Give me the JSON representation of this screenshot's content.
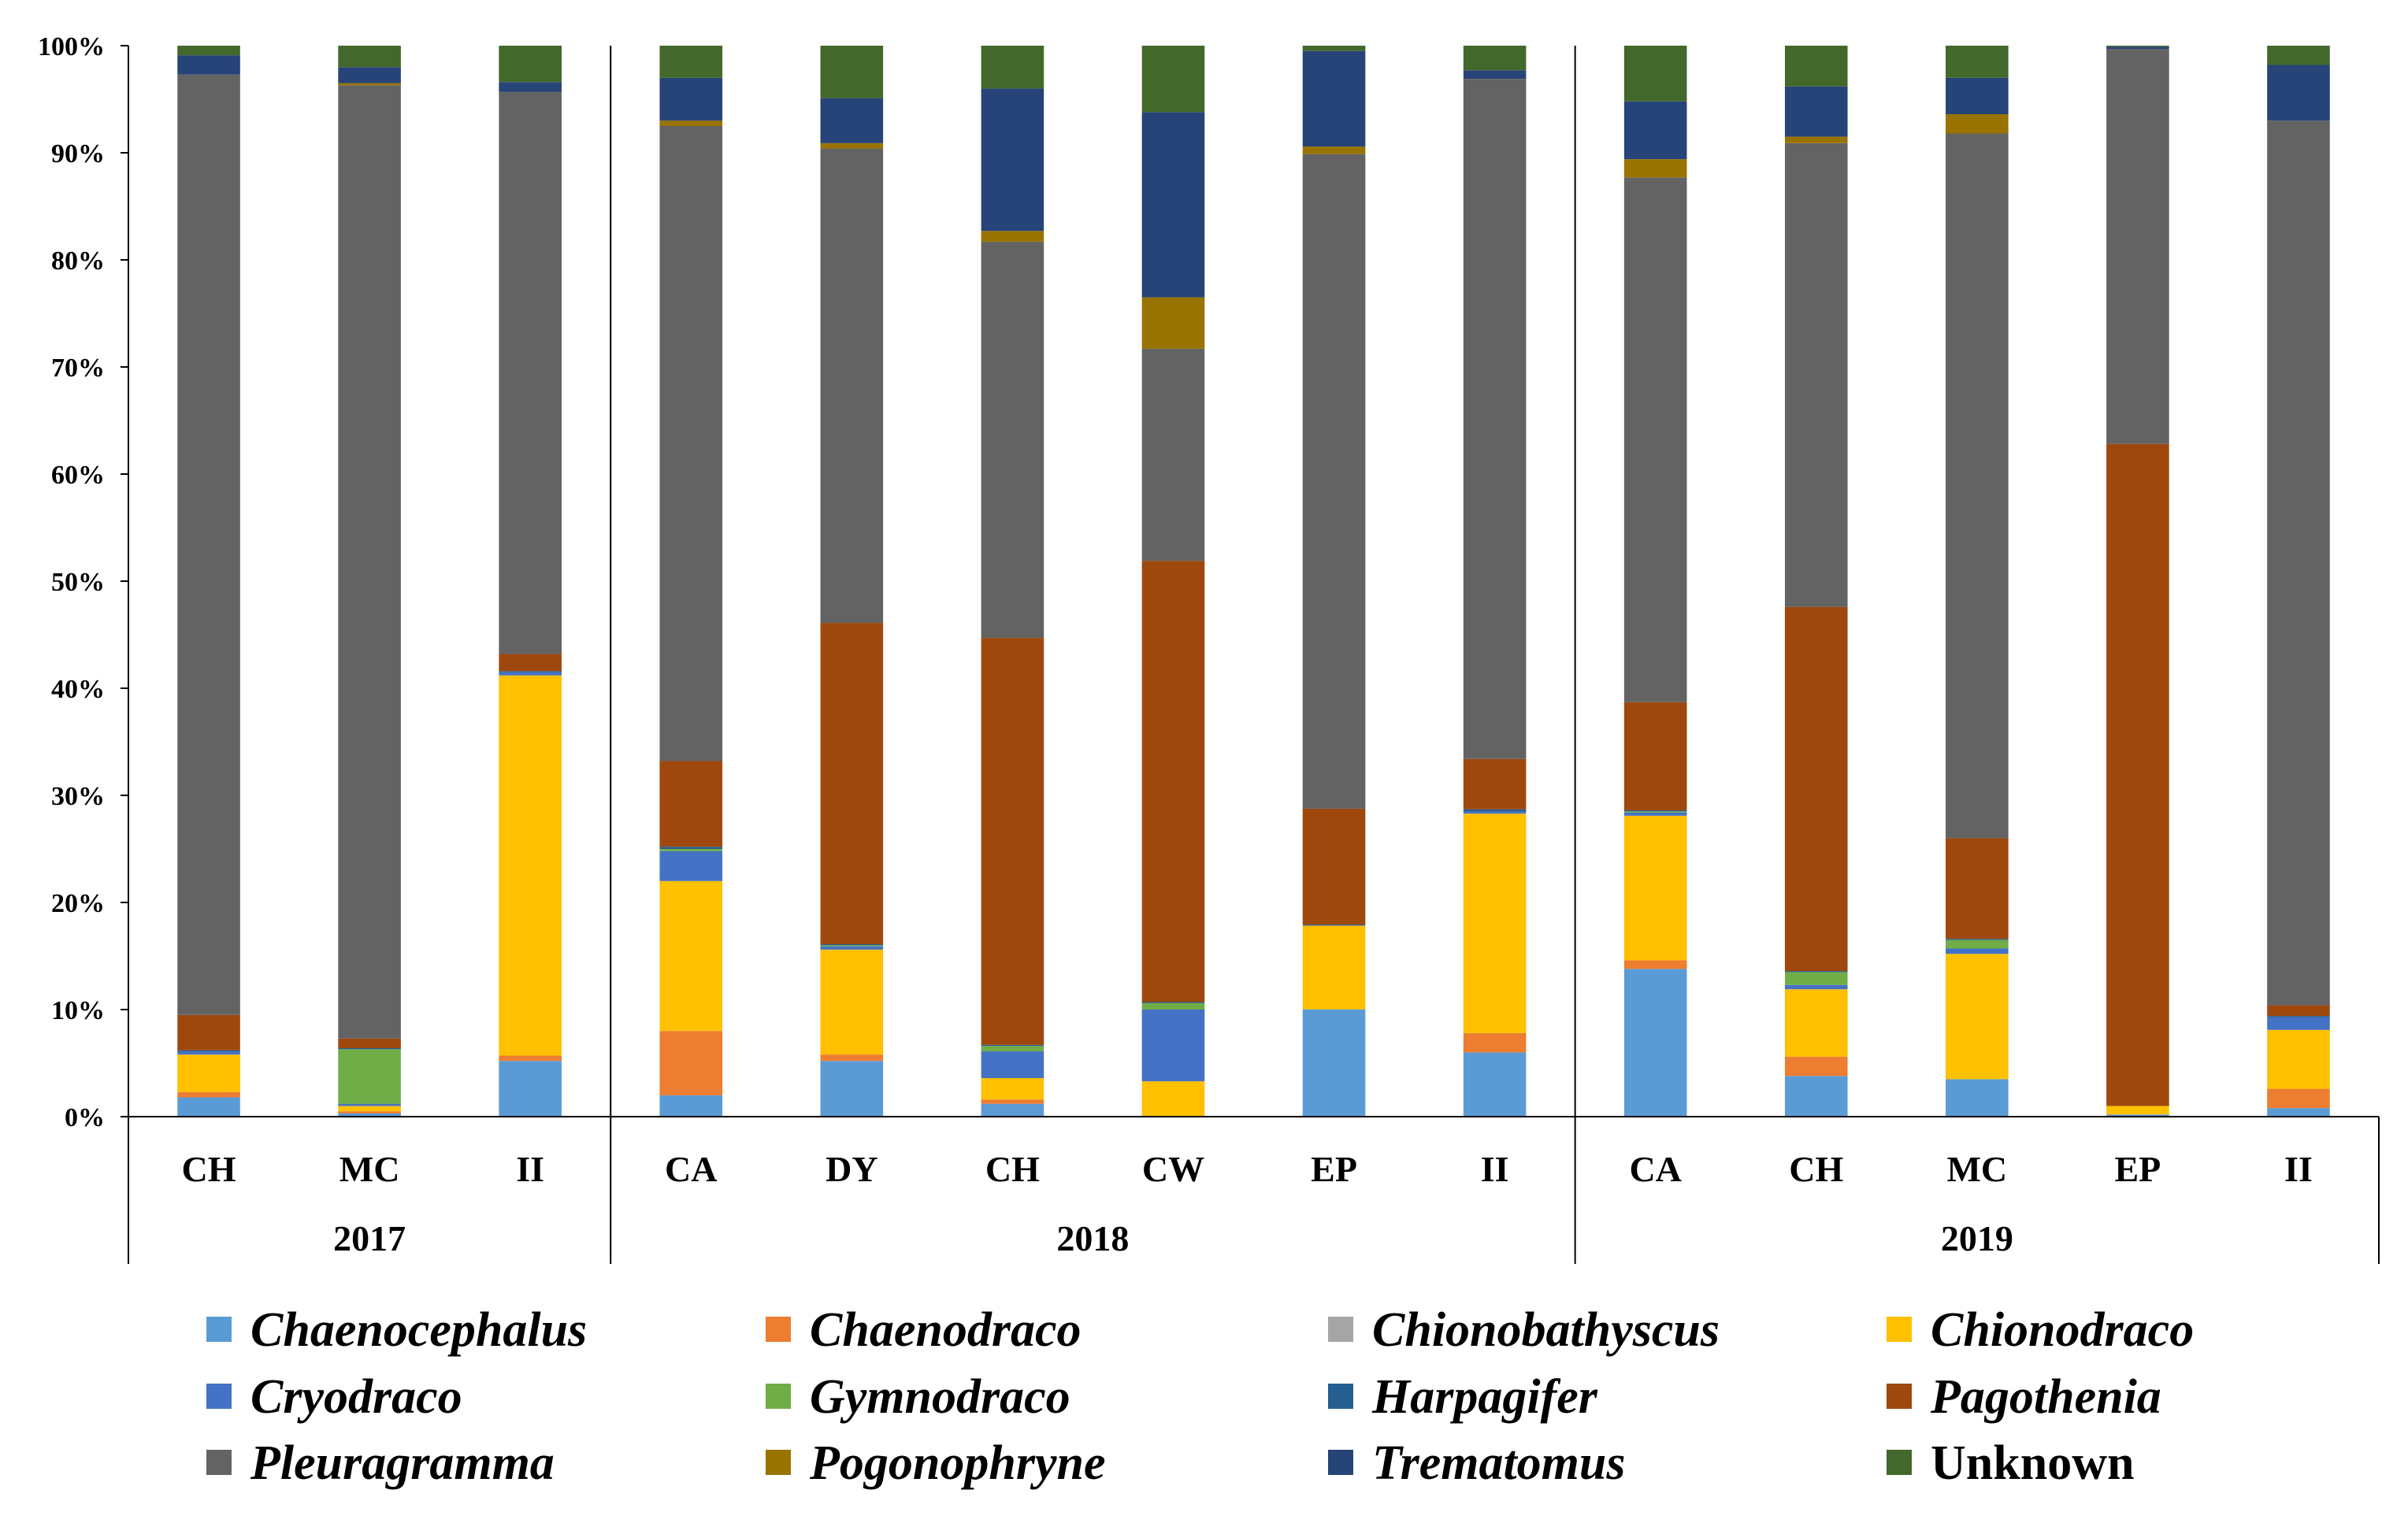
{
  "chart_data": {
    "type": "bar",
    "stacked": true,
    "percent": true,
    "title": "",
    "ylabel": "",
    "ylim": [
      0,
      100
    ],
    "yticks": [
      "0%",
      "10%",
      "20%",
      "30%",
      "40%",
      "50%",
      "60%",
      "70%",
      "80%",
      "90%",
      "100%"
    ],
    "groups": [
      {
        "label": "2017",
        "categories": [
          "CH",
          "MC",
          "II"
        ]
      },
      {
        "label": "2018",
        "categories": [
          "CA",
          "DY",
          "CH",
          "CW",
          "EP",
          "II"
        ]
      },
      {
        "label": "2019",
        "categories": [
          "CA",
          "CH",
          "MC",
          "EP",
          "II"
        ]
      }
    ],
    "categories": [
      "CH",
      "MC",
      "II",
      "CA",
      "DY",
      "CH",
      "CW",
      "EP",
      "II",
      "CA",
      "CH",
      "MC",
      "EP",
      "II"
    ],
    "series": [
      {
        "name": "Chaenocephalus",
        "italic": true,
        "color": "#5B9BD5",
        "values": [
          1.8,
          0.3,
          5.2,
          2.0,
          5.2,
          1.2,
          0.0,
          10.0,
          6.0,
          13.8,
          3.8,
          3.5,
          0.2,
          0.8
        ]
      },
      {
        "name": "Chaenodraco",
        "italic": true,
        "color": "#ED7D31",
        "values": [
          0.5,
          0.2,
          0.5,
          6.0,
          0.6,
          0.4,
          0.0,
          0.0,
          1.8,
          0.8,
          1.8,
          0.0,
          0.0,
          1.8
        ]
      },
      {
        "name": "Chionobathyscus",
        "italic": true,
        "color": "#A5A5A5",
        "values": [
          0.0,
          0.0,
          0.0,
          0.0,
          0.0,
          0.0,
          0.0,
          0.0,
          0.0,
          0.0,
          0.0,
          0.0,
          0.0,
          0.0
        ]
      },
      {
        "name": "Chionodraco",
        "italic": true,
        "color": "#FFC000",
        "values": [
          3.5,
          0.5,
          35.5,
          14.0,
          9.8,
          2.0,
          3.3,
          7.8,
          20.5,
          13.5,
          6.3,
          11.7,
          0.8,
          5.5
        ]
      },
      {
        "name": "Cryodraco",
        "italic": true,
        "color": "#4472C4",
        "values": [
          0.3,
          0.2,
          0.3,
          2.8,
          0.3,
          2.5,
          6.7,
          0.0,
          0.2,
          0.3,
          0.4,
          0.5,
          0.0,
          1.2
        ]
      },
      {
        "name": "Gymnodraco",
        "italic": true,
        "color": "#70AD47",
        "values": [
          0.0,
          5.1,
          0.0,
          0.2,
          0.1,
          0.5,
          0.6,
          0.0,
          0.0,
          0.1,
          1.2,
          0.8,
          0.0,
          0.0
        ]
      },
      {
        "name": "Harpagifer",
        "italic": true,
        "color": "#255E91",
        "values": [
          0.1,
          0.1,
          0.1,
          0.2,
          0.1,
          0.1,
          0.1,
          0.1,
          0.2,
          0.1,
          0.1,
          0.1,
          0.0,
          0.1
        ]
      },
      {
        "name": "Pagothenia",
        "italic": true,
        "color": "#9E480E",
        "values": [
          3.3,
          0.9,
          1.6,
          8.0,
          30.0,
          38.0,
          41.2,
          10.8,
          4.7,
          10.1,
          34.0,
          9.4,
          62.0,
          1.0
        ]
      },
      {
        "name": "Pleuragramma",
        "italic": true,
        "color": "#636363",
        "values": [
          87.8,
          89.0,
          52.5,
          59.3,
          44.3,
          37.0,
          19.8,
          61.0,
          63.5,
          49.0,
          43.3,
          65.8,
          37.0,
          82.6
        ]
      },
      {
        "name": "Pogonophryne",
        "italic": true,
        "color": "#997300",
        "values": [
          0.0,
          0.2,
          0.0,
          0.5,
          0.5,
          1.0,
          4.8,
          0.7,
          0.0,
          1.7,
          0.6,
          1.8,
          0.0,
          0.0
        ]
      },
      {
        "name": "Trematomus",
        "italic": true,
        "color": "#264478",
        "values": [
          1.8,
          1.5,
          0.9,
          4.0,
          4.2,
          13.3,
          17.3,
          8.9,
          0.8,
          5.4,
          4.7,
          3.4,
          0.2,
          5.2
        ]
      },
      {
        "name": "Unknown",
        "italic": false,
        "color": "#43682B",
        "values": [
          0.9,
          2.0,
          3.4,
          3.0,
          4.9,
          4.0,
          6.2,
          0.5,
          2.3,
          5.2,
          3.8,
          3.0,
          0.1,
          1.8
        ]
      }
    ],
    "legend_position": "bottom",
    "grid": false
  }
}
